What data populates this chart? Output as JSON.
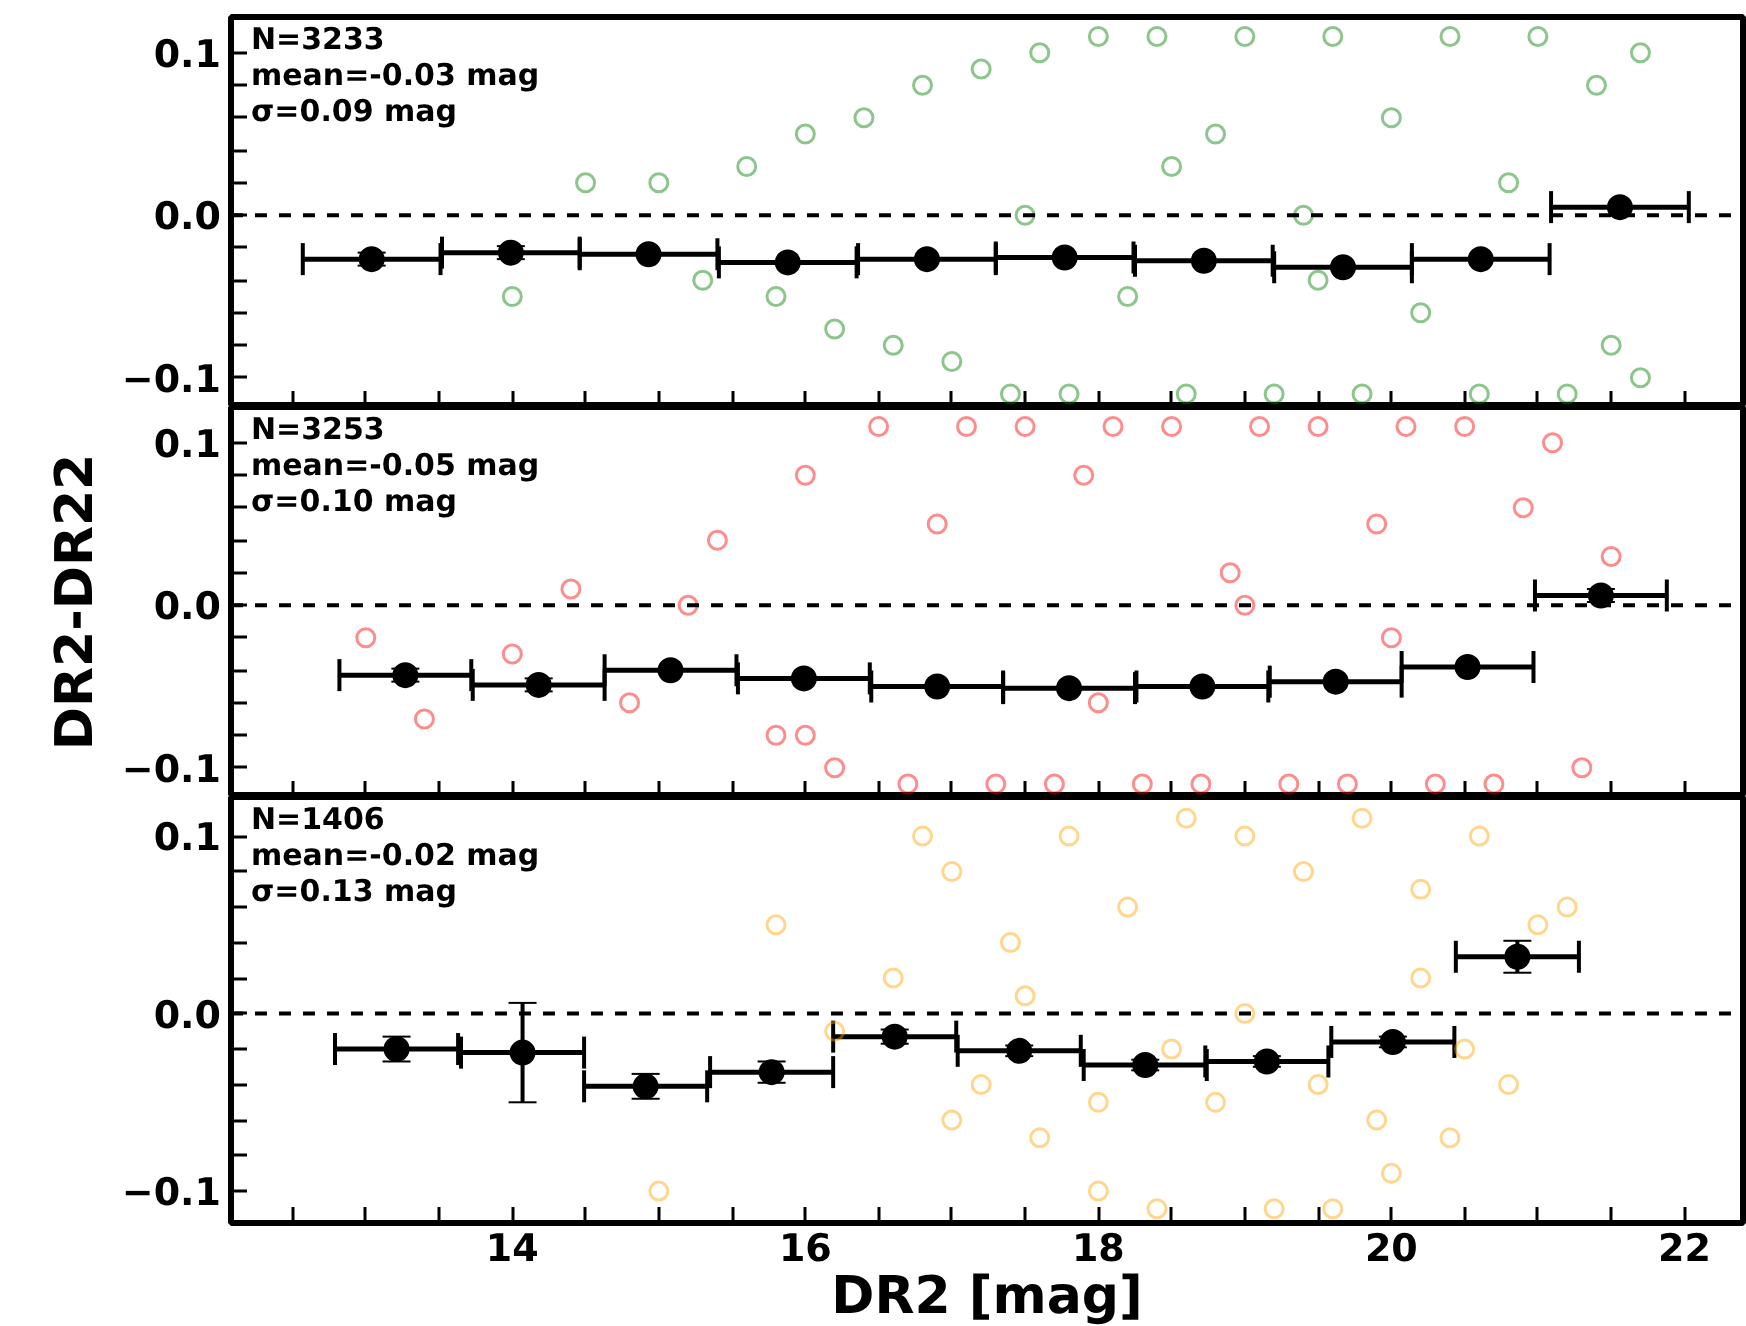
{
  "chart_data": [
    {
      "type": "scatter",
      "ylabel": null,
      "annotations": [
        "N=3233",
        "mean=-0.03 mag",
        "σ=0.09 mag"
      ],
      "xlim": [
        12.08,
        22.4
      ],
      "ylim": [
        -0.118,
        0.122
      ],
      "tick_labels": "y",
      "marker": "circle",
      "grid": false,
      "xticks": [
        {
          "value": 12.5,
          "label": null
        },
        {
          "value": 13,
          "label": null
        },
        {
          "value": 13.5,
          "label": null
        },
        {
          "value": 14,
          "label": null
        },
        {
          "value": 14.5,
          "label": null
        },
        {
          "value": 15,
          "label": null
        },
        {
          "value": 15.5,
          "label": null
        },
        {
          "value": 16,
          "label": null
        },
        {
          "value": 16.5,
          "label": null
        },
        {
          "value": 17,
          "label": null
        },
        {
          "value": 17.5,
          "label": null
        },
        {
          "value": 18,
          "label": null
        },
        {
          "value": 18.5,
          "label": null
        },
        {
          "value": 19,
          "label": null
        },
        {
          "value": 19.5,
          "label": null
        },
        {
          "value": 20,
          "label": null
        },
        {
          "value": 20.5,
          "label": null
        },
        {
          "value": 21,
          "label": null
        },
        {
          "value": 21.5,
          "label": null
        },
        {
          "value": 22,
          "label": null
        }
      ],
      "yticks": [
        {
          "value": -0.1,
          "label": "−0.1"
        },
        {
          "value": -0.08,
          "label": null
        },
        {
          "value": -0.06,
          "label": null
        },
        {
          "value": -0.04,
          "label": null
        },
        {
          "value": -0.02,
          "label": null
        },
        {
          "value": 0,
          "label": "0.0"
        },
        {
          "value": 0.02,
          "label": null
        },
        {
          "value": 0.04,
          "label": null
        },
        {
          "value": 0.06,
          "label": null
        },
        {
          "value": 0.08,
          "label": null
        },
        {
          "value": 0.1,
          "label": "0.1"
        }
      ],
      "ref_lines": [
        {
          "axis": "y",
          "value": 0,
          "label": null,
          "color": "#000000",
          "line_style": "dashed"
        }
      ],
      "series": [
        {
          "color": "#008000",
          "x": [
            14.0,
            14.5,
            15.0,
            15.3,
            15.6,
            15.8,
            16.0,
            16.2,
            16.4,
            16.6,
            16.8,
            17.0,
            17.2,
            17.4,
            17.5,
            17.6,
            17.8,
            18.0,
            18.2,
            18.4,
            18.5,
            18.6,
            18.8,
            19.0,
            19.2,
            19.4,
            19.5,
            19.6,
            19.8,
            20.0,
            20.2,
            20.4,
            20.6,
            20.8,
            21.0,
            21.2,
            21.4,
            21.5,
            21.7,
            21.7
          ],
          "values": [
            -0.05,
            0.02,
            0.02,
            -0.04,
            0.03,
            -0.05,
            0.05,
            -0.07,
            0.06,
            -0.08,
            0.08,
            -0.09,
            0.09,
            -0.11,
            0.0,
            0.1,
            -0.11,
            0.11,
            -0.05,
            0.11,
            0.03,
            -0.11,
            0.05,
            0.11,
            -0.11,
            0.0,
            -0.04,
            0.11,
            -0.11,
            0.06,
            -0.06,
            0.11,
            -0.11,
            0.02,
            0.11,
            -0.11,
            0.08,
            -0.08,
            0.1,
            -0.1
          ]
        },
        {
          "color": "#000000",
          "x": [
            13.04,
            13.99,
            14.93,
            15.88,
            16.83,
            17.77,
            18.72,
            19.67,
            20.61,
            21.56
          ],
          "values": [
            -0.027,
            -0.023,
            -0.024,
            -0.029,
            -0.027,
            -0.026,
            -0.028,
            -0.032,
            -0.027,
            0.005
          ],
          "errors": [
            0.004,
            0.004,
            null,
            null,
            null,
            null,
            null,
            null,
            null,
            null
          ],
          "xerrors": [
            0.47,
            0.47,
            0.47,
            0.47,
            0.47,
            0.47,
            0.47,
            0.47,
            0.47,
            0.47
          ]
        }
      ]
    },
    {
      "type": "scatter",
      "ylabel": "DR2-DR22",
      "annotations": [
        "N=3253",
        "mean=-0.05 mag",
        "σ=0.10 mag"
      ],
      "xlim": [
        12.08,
        22.4
      ],
      "ylim": [
        -0.118,
        0.122
      ],
      "tick_labels": "y",
      "marker": "circle",
      "grid": false,
      "xticks": [
        {
          "value": 12.5,
          "label": null
        },
        {
          "value": 13,
          "label": null
        },
        {
          "value": 13.5,
          "label": null
        },
        {
          "value": 14,
          "label": null
        },
        {
          "value": 14.5,
          "label": null
        },
        {
          "value": 15,
          "label": null
        },
        {
          "value": 15.5,
          "label": null
        },
        {
          "value": 16,
          "label": null
        },
        {
          "value": 16.5,
          "label": null
        },
        {
          "value": 17,
          "label": null
        },
        {
          "value": 17.5,
          "label": null
        },
        {
          "value": 18,
          "label": null
        },
        {
          "value": 18.5,
          "label": null
        },
        {
          "value": 19,
          "label": null
        },
        {
          "value": 19.5,
          "label": null
        },
        {
          "value": 20,
          "label": null
        },
        {
          "value": 20.5,
          "label": null
        },
        {
          "value": 21,
          "label": null
        },
        {
          "value": 21.5,
          "label": null
        },
        {
          "value": 22,
          "label": null
        }
      ],
      "yticks": [
        {
          "value": -0.1,
          "label": "−0.1"
        },
        {
          "value": -0.08,
          "label": null
        },
        {
          "value": -0.06,
          "label": null
        },
        {
          "value": -0.04,
          "label": null
        },
        {
          "value": -0.02,
          "label": null
        },
        {
          "value": 0,
          "label": "0.0"
        },
        {
          "value": 0.02,
          "label": null
        },
        {
          "value": 0.04,
          "label": null
        },
        {
          "value": 0.06,
          "label": null
        },
        {
          "value": 0.08,
          "label": null
        },
        {
          "value": 0.1,
          "label": "0.1"
        }
      ],
      "ref_lines": [
        {
          "axis": "y",
          "value": 0,
          "label": null,
          "color": "#000000",
          "line_style": "dashed"
        }
      ],
      "series": [
        {
          "color": "#ff0000",
          "x": [
            13.0,
            13.4,
            14.0,
            14.4,
            14.8,
            15.2,
            15.4,
            15.8,
            16.0,
            16.2,
            16.5,
            16.7,
            16.9,
            17.1,
            17.3,
            17.5,
            17.7,
            17.9,
            18.1,
            18.3,
            18.5,
            18.7,
            18.9,
            19.1,
            19.3,
            19.5,
            19.7,
            19.9,
            20.1,
            20.3,
            20.5,
            20.7,
            20.9,
            21.1,
            21.3,
            21.5,
            16.0,
            18.0,
            19.0,
            20.0
          ],
          "values": [
            -0.02,
            -0.07,
            -0.03,
            0.01,
            -0.06,
            0.0,
            0.04,
            -0.08,
            0.08,
            -0.1,
            0.11,
            -0.11,
            0.05,
            0.11,
            -0.11,
            0.11,
            -0.11,
            0.08,
            0.11,
            -0.11,
            0.11,
            -0.11,
            0.02,
            0.11,
            -0.11,
            0.11,
            -0.11,
            0.05,
            0.11,
            -0.11,
            0.11,
            -0.11,
            0.06,
            0.1,
            -0.1,
            0.03,
            -0.08,
            -0.06,
            0.0,
            -0.02
          ]
        },
        {
          "color": "#000000",
          "x": [
            13.27,
            14.18,
            15.08,
            15.99,
            16.9,
            17.8,
            18.71,
            19.62,
            20.52,
            21.43
          ],
          "values": [
            -0.043,
            -0.049,
            -0.04,
            -0.045,
            -0.05,
            -0.051,
            -0.05,
            -0.047,
            -0.038,
            0.006
          ],
          "errors": [
            0.004,
            0.004,
            null,
            null,
            null,
            null,
            null,
            null,
            null,
            0.004
          ],
          "xerrors": [
            0.45,
            0.45,
            0.45,
            0.45,
            0.45,
            0.45,
            0.45,
            0.45,
            0.45,
            0.45
          ]
        }
      ]
    },
    {
      "type": "scatter",
      "xlabel": "DR2 [mag]",
      "annotations": [
        "N=1406",
        "mean=-0.02 mag",
        "σ=0.13 mag"
      ],
      "xlim": [
        12.08,
        22.4
      ],
      "ylim": [
        -0.118,
        0.122
      ],
      "marker": "circle",
      "grid": false,
      "xticks": [
        {
          "value": 12.5,
          "label": null
        },
        {
          "value": 13,
          "label": null
        },
        {
          "value": 13.5,
          "label": null
        },
        14,
        {
          "value": 14.5,
          "label": null
        },
        {
          "value": 15,
          "label": null
        },
        {
          "value": 15.5,
          "label": null
        },
        16,
        {
          "value": 16.5,
          "label": null
        },
        {
          "value": 17,
          "label": null
        },
        {
          "value": 17.5,
          "label": null
        },
        18,
        {
          "value": 18.5,
          "label": null
        },
        {
          "value": 19,
          "label": null
        },
        {
          "value": 19.5,
          "label": null
        },
        20,
        {
          "value": 20.5,
          "label": null
        },
        {
          "value": 21,
          "label": null
        },
        {
          "value": 21.5,
          "label": null
        },
        22
      ],
      "yticks": [
        {
          "value": -0.1,
          "label": "−0.1"
        },
        {
          "value": -0.08,
          "label": null
        },
        {
          "value": -0.06,
          "label": null
        },
        {
          "value": -0.04,
          "label": null
        },
        {
          "value": -0.02,
          "label": null
        },
        {
          "value": 0,
          "label": "0.0"
        },
        {
          "value": 0.02,
          "label": null
        },
        {
          "value": 0.04,
          "label": null
        },
        {
          "value": 0.06,
          "label": null
        },
        {
          "value": 0.08,
          "label": null
        },
        {
          "value": 0.1,
          "label": "0.1"
        }
      ],
      "ref_lines": [
        {
          "axis": "y",
          "value": 0,
          "label": null,
          "color": "#000000",
          "line_style": "dashed"
        }
      ],
      "series": [
        {
          "color": "#ffa500",
          "x": [
            15.0,
            15.8,
            16.2,
            16.6,
            17.0,
            17.2,
            17.4,
            17.6,
            17.8,
            18.0,
            18.2,
            18.4,
            18.6,
            18.8,
            19.0,
            19.2,
            19.4,
            19.6,
            19.8,
            20.0,
            20.2,
            20.4,
            20.6,
            20.8,
            21.0,
            17.5,
            18.5,
            19.5,
            20.5,
            19.0,
            18.0,
            19.9,
            17.0,
            20.2,
            16.8,
            21.2
          ],
          "values": [
            -0.1,
            0.05,
            -0.01,
            0.02,
            0.08,
            -0.04,
            0.04,
            -0.07,
            0.1,
            -0.1,
            0.06,
            -0.11,
            0.11,
            -0.05,
            0.1,
            -0.11,
            0.08,
            -0.11,
            0.11,
            -0.09,
            0.07,
            -0.07,
            0.1,
            -0.04,
            0.05,
            0.01,
            -0.02,
            -0.04,
            -0.02,
            0.0,
            -0.05,
            -0.06,
            -0.06,
            0.02,
            0.1,
            0.06
          ]
        },
        {
          "color": "#000000",
          "x": [
            13.21,
            14.07,
            14.91,
            15.77,
            16.61,
            17.46,
            18.32,
            19.15,
            20.01,
            20.86
          ],
          "values": [
            -0.02,
            -0.022,
            -0.041,
            -0.033,
            -0.013,
            -0.021,
            -0.029,
            -0.027,
            -0.016,
            0.032
          ],
          "errors": [
            0.007,
            0.028,
            0.007,
            0.006,
            0.004,
            0.003,
            0.003,
            0.003,
            0.003,
            0.009
          ],
          "xerrors": [
            0.42,
            0.42,
            0.42,
            0.42,
            0.42,
            0.42,
            0.42,
            0.42,
            0.42,
            0.42
          ]
        }
      ]
    }
  ]
}
